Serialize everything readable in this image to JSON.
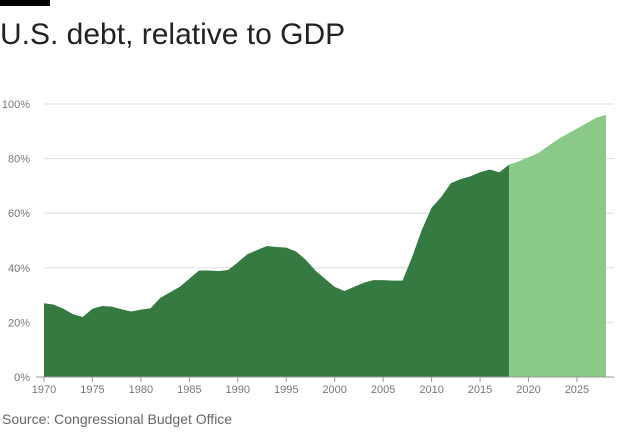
{
  "title": "U.S. debt, relative to GDP",
  "source": "Source: Congressional Budget Office",
  "colors": {
    "actual": "#347a41",
    "projected": "#8ac987",
    "grid": "#dddddd",
    "axis": "#999999",
    "accent_bar": "#000000"
  },
  "chart_data": {
    "type": "area",
    "title": "U.S. debt, relative to GDP",
    "xlabel": "",
    "ylabel": "",
    "xlim": [
      1970,
      2028
    ],
    "ylim": [
      0,
      100
    ],
    "y_ticks": [
      0,
      20,
      40,
      60,
      80,
      100
    ],
    "y_tick_labels": [
      "0%",
      "20%",
      "40%",
      "60%",
      "80%",
      "100%"
    ],
    "x_ticks": [
      1970,
      1975,
      1980,
      1985,
      1990,
      1995,
      2000,
      2005,
      2010,
      2015,
      2020,
      2025
    ],
    "x_tick_labels": [
      "1970",
      "1975",
      "1980",
      "1985",
      "1990",
      "1995",
      "2000",
      "2005",
      "2010",
      "2015",
      "2020",
      "2025"
    ],
    "grid": true,
    "series": [
      {
        "key": "actual",
        "x": [
          1970,
          1971,
          1972,
          1973,
          1974,
          1975,
          1976,
          1977,
          1978,
          1979,
          1980,
          1981,
          1982,
          1983,
          1984,
          1985,
          1986,
          1987,
          1988,
          1989,
          1990,
          1991,
          1992,
          1993,
          1994,
          1995,
          1996,
          1997,
          1998,
          1999,
          2000,
          2001,
          2002,
          2003,
          2004,
          2005,
          2006,
          2007,
          2008,
          2009,
          2010,
          2011,
          2012,
          2013,
          2014,
          2015,
          2016,
          2017,
          2018
        ],
        "values": [
          27,
          26.5,
          25,
          23,
          22,
          25,
          26,
          25.8,
          24.8,
          24,
          24.7,
          25.2,
          29,
          31,
          33,
          36,
          39,
          39,
          38.8,
          39.2,
          42,
          45,
          46.5,
          48,
          47.6,
          47.4,
          46,
          43,
          39,
          36,
          33,
          31.5,
          33,
          34.5,
          35.5,
          35.5,
          35.3,
          35.3,
          44,
          54,
          62,
          66,
          71,
          72.5,
          73.5,
          75,
          76,
          75,
          77.8
        ]
      },
      {
        "key": "projected",
        "x": [
          2018,
          2019,
          2020,
          2021,
          2022,
          2023,
          2024,
          2025,
          2026,
          2027,
          2028
        ],
        "values": [
          77.8,
          79,
          80.5,
          82,
          84.5,
          87,
          89,
          91,
          93,
          95,
          96
        ]
      }
    ]
  }
}
